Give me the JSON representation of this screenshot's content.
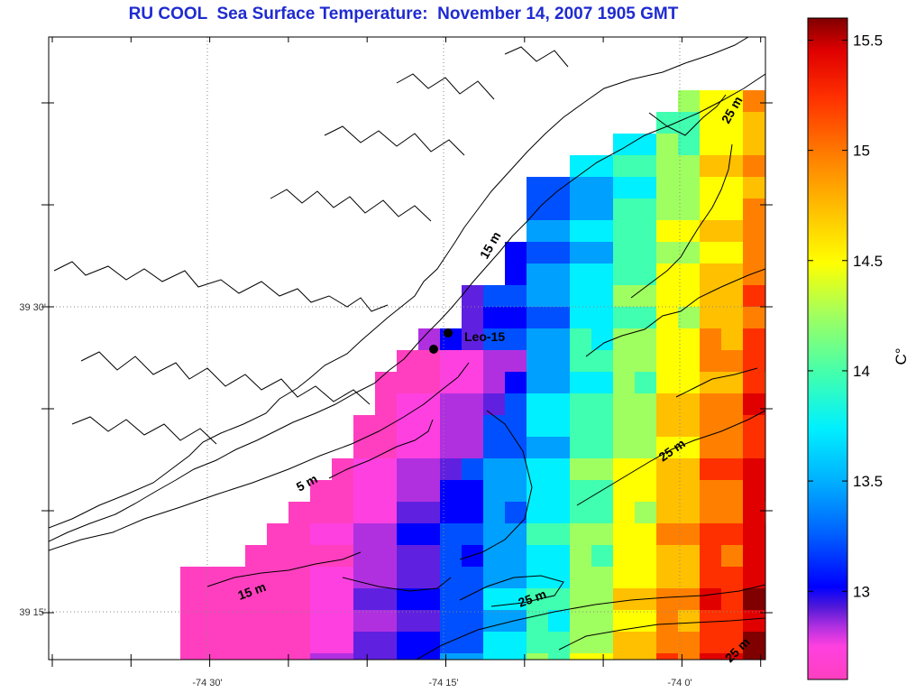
{
  "title": "RU COOL  Sea Surface Temperature:  November 14, 2007 1905 GMT",
  "map": {
    "lat_labels": [
      "39 30'",
      "39 15'"
    ],
    "lon_labels": [
      "-74 30'",
      "-74 15'",
      "-74 0'"
    ],
    "station": {
      "name": "Leo-15"
    },
    "contour_labels": [
      "5 m",
      "15 m",
      "25 m",
      "15 m",
      "25 m",
      "25 m",
      "25 m"
    ]
  },
  "colorbar": {
    "unit": "C°",
    "min": 12.6,
    "max": 15.6,
    "ticks": [
      "13",
      "13.5",
      "14",
      "14.5",
      "15",
      "15.5"
    ],
    "colors": [
      "#ff3fbf",
      "#ff40e0",
      "#b030e0",
      "#6020e0",
      "#0000ff",
      "#0050ff",
      "#00a0ff",
      "#00f0ff",
      "#40ffb0",
      "#a0ff60",
      "#ffff00",
      "#ffc000",
      "#ff8000",
      "#ff3000",
      "#e00000",
      "#800000"
    ]
  },
  "colors": {
    "title": "#1f2bd0",
    "frame": "#000000",
    "grid": "#888888"
  }
}
